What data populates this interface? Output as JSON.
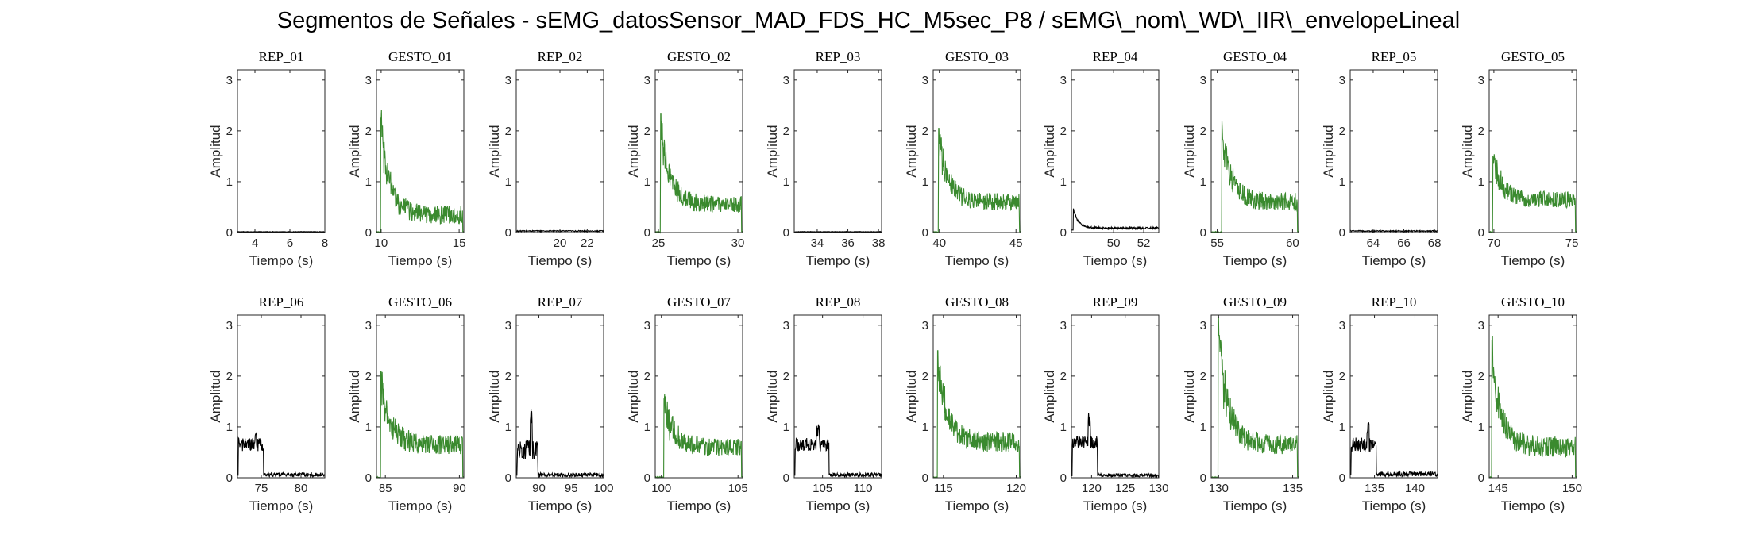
{
  "figure": {
    "title": "Segmentos de Señales - sEMG_datosSensor_MAD_FDS_HC_M5sec_P8 / sEMG\\_nom\\_WD\\_IIR\\_envelopeLineal",
    "xlabel": "Tiempo (s)",
    "ylabel": "Amplitud",
    "colors": {
      "rep": "#000000",
      "gesto": "#3a8a2e",
      "axis": "#262626"
    }
  },
  "chart_data": [
    {
      "type": "line",
      "title": "REP_01",
      "kind": "rep",
      "xlim": [
        3,
        8
      ],
      "ylim": [
        0,
        3.2
      ],
      "xticks": [
        4,
        6,
        8
      ],
      "yticks": [
        0,
        1,
        2,
        3
      ],
      "xlabel": "Tiempo (s)",
      "ylabel": "Amplitud",
      "profile": {
        "onset": 0,
        "peak": 0.02,
        "level": 0.01,
        "noise": 0.01,
        "rest": 0.01
      }
    },
    {
      "type": "line",
      "title": "GESTO_01",
      "kind": "gesto",
      "xlim": [
        9.7,
        15.3
      ],
      "ylim": [
        0,
        3.2
      ],
      "xticks": [
        10,
        15
      ],
      "yticks": [
        0,
        1,
        2,
        3
      ],
      "xlabel": "Tiempo (s)",
      "ylabel": "Amplitud",
      "profile": {
        "onset": 0.05,
        "peak": 2.25,
        "level": 0.35,
        "noise": 0.18,
        "rest": 0.02
      }
    },
    {
      "type": "line",
      "title": "REP_02",
      "kind": "rep",
      "xlim": [
        16.8,
        23.2
      ],
      "ylim": [
        0,
        3.2
      ],
      "xticks": [
        20,
        22
      ],
      "yticks": [
        0,
        1,
        2,
        3
      ],
      "xlabel": "Tiempo (s)",
      "ylabel": "Amplitud",
      "profile": {
        "onset": 0,
        "peak": 0.04,
        "level": 0.02,
        "noise": 0.02,
        "rest": 0.02
      }
    },
    {
      "type": "line",
      "title": "GESTO_02",
      "kind": "gesto",
      "xlim": [
        24.8,
        30.3
      ],
      "ylim": [
        0,
        3.2
      ],
      "xticks": [
        25,
        30
      ],
      "yticks": [
        0,
        1,
        2,
        3
      ],
      "xlabel": "Tiempo (s)",
      "ylabel": "Amplitud",
      "profile": {
        "onset": 0.06,
        "peak": 2.33,
        "level": 0.55,
        "noise": 0.17,
        "rest": 0.02
      }
    },
    {
      "type": "line",
      "title": "REP_03",
      "kind": "rep",
      "xlim": [
        32.5,
        38.2
      ],
      "ylim": [
        0,
        3.2
      ],
      "xticks": [
        34,
        36,
        38
      ],
      "yticks": [
        0,
        1,
        2,
        3
      ],
      "xlabel": "Tiempo (s)",
      "ylabel": "Amplitud",
      "profile": {
        "onset": 0,
        "peak": 0.02,
        "level": 0.01,
        "noise": 0.01,
        "rest": 0.01
      }
    },
    {
      "type": "line",
      "title": "GESTO_03",
      "kind": "gesto",
      "xlim": [
        39.6,
        45.3
      ],
      "ylim": [
        0,
        3.2
      ],
      "xticks": [
        40,
        45
      ],
      "yticks": [
        0,
        1,
        2,
        3
      ],
      "xlabel": "Tiempo (s)",
      "ylabel": "Amplitud",
      "profile": {
        "onset": 0.06,
        "peak": 2.05,
        "level": 0.6,
        "noise": 0.17,
        "rest": 0.02
      }
    },
    {
      "type": "line",
      "title": "REP_04",
      "kind": "rep",
      "xlim": [
        47.2,
        53
      ],
      "ylim": [
        0,
        3.2
      ],
      "xticks": [
        50,
        52
      ],
      "yticks": [
        0,
        1,
        2,
        3
      ],
      "xlabel": "Tiempo (s)",
      "ylabel": "Amplitud",
      "profile": {
        "onset": 0.02,
        "peak": 0.47,
        "level": 0.08,
        "noise": 0.04,
        "rest": 0.05
      }
    },
    {
      "type": "line",
      "title": "GESTO_04",
      "kind": "gesto",
      "xlim": [
        54.6,
        60.4
      ],
      "ylim": [
        0,
        3.2
      ],
      "xticks": [
        55,
        60
      ],
      "yticks": [
        0,
        1,
        2,
        3
      ],
      "xlabel": "Tiempo (s)",
      "ylabel": "Amplitud",
      "profile": {
        "onset": 0.12,
        "peak": 2.2,
        "level": 0.6,
        "noise": 0.18,
        "rest": 0.02
      }
    },
    {
      "type": "line",
      "title": "REP_05",
      "kind": "rep",
      "xlim": [
        62.5,
        68.2
      ],
      "ylim": [
        0,
        3.2
      ],
      "xticks": [
        64,
        66,
        68
      ],
      "yticks": [
        0,
        1,
        2,
        3
      ],
      "xlabel": "Tiempo (s)",
      "ylabel": "Amplitud",
      "profile": {
        "onset": 0,
        "peak": 0.05,
        "level": 0.02,
        "noise": 0.02,
        "rest": 0.02
      }
    },
    {
      "type": "line",
      "title": "GESTO_05",
      "kind": "gesto",
      "xlim": [
        69.7,
        75.3
      ],
      "ylim": [
        0,
        3.2
      ],
      "xticks": [
        70,
        75
      ],
      "yticks": [
        0,
        1,
        2,
        3
      ],
      "xlabel": "Tiempo (s)",
      "ylabel": "Amplitud",
      "profile": {
        "onset": 0.04,
        "peak": 1.5,
        "level": 0.65,
        "noise": 0.16,
        "rest": 0.02
      }
    },
    {
      "type": "line",
      "title": "REP_06",
      "kind": "rep",
      "xlim": [
        72,
        83
      ],
      "ylim": [
        0,
        3.2
      ],
      "xticks": [
        75,
        80
      ],
      "yticks": [
        0,
        1,
        2,
        3
      ],
      "xlabel": "Tiempo (s)",
      "ylabel": "Amplitud",
      "profile": {
        "onset": 0.01,
        "peak": 0.9,
        "level": 0.65,
        "noise": 0.13,
        "rest": 0.05,
        "cut": 0.3
      }
    },
    {
      "type": "line",
      "title": "GESTO_06",
      "kind": "gesto",
      "xlim": [
        84.4,
        90.3
      ],
      "ylim": [
        0,
        3.2
      ],
      "xticks": [
        85,
        90
      ],
      "yticks": [
        0,
        1,
        2,
        3
      ],
      "xlabel": "Tiempo (s)",
      "ylabel": "Amplitud",
      "profile": {
        "onset": 0.05,
        "peak": 2.1,
        "level": 0.65,
        "noise": 0.2,
        "rest": 0.02
      }
    },
    {
      "type": "line",
      "title": "REP_07",
      "kind": "rep",
      "xlim": [
        86.5,
        100
      ],
      "ylim": [
        0,
        3.2
      ],
      "xticks": [
        90,
        95,
        100
      ],
      "yticks": [
        0,
        1,
        2,
        3
      ],
      "xlabel": "Tiempo (s)",
      "ylabel": "Amplitud",
      "profile": {
        "onset": 0.01,
        "peak": 1.35,
        "level": 0.55,
        "noise": 0.2,
        "rest": 0.05,
        "cut": 0.25
      }
    },
    {
      "type": "line",
      "title": "GESTO_07",
      "kind": "gesto",
      "xlim": [
        99.6,
        105.3
      ],
      "ylim": [
        0,
        3.2
      ],
      "xticks": [
        100,
        105
      ],
      "yticks": [
        0,
        1,
        2,
        3
      ],
      "xlabel": "Tiempo (s)",
      "ylabel": "Amplitud",
      "profile": {
        "onset": 0.1,
        "peak": 1.55,
        "level": 0.6,
        "noise": 0.18,
        "rest": 0.02
      }
    },
    {
      "type": "line",
      "title": "REP_08",
      "kind": "rep",
      "xlim": [
        101.5,
        112.3
      ],
      "ylim": [
        0,
        3.2
      ],
      "xticks": [
        105,
        110
      ],
      "yticks": [
        0,
        1,
        2,
        3
      ],
      "xlabel": "Tiempo (s)",
      "ylabel": "Amplitud",
      "profile": {
        "onset": 0.01,
        "peak": 1.05,
        "level": 0.65,
        "noise": 0.13,
        "rest": 0.05,
        "cut": 0.4
      }
    },
    {
      "type": "line",
      "title": "GESTO_08",
      "kind": "gesto",
      "xlim": [
        114.3,
        120.3
      ],
      "ylim": [
        0,
        3.2
      ],
      "xticks": [
        115,
        120
      ],
      "yticks": [
        0,
        1,
        2,
        3
      ],
      "xlabel": "Tiempo (s)",
      "ylabel": "Amplitud",
      "profile": {
        "onset": 0.05,
        "peak": 2.5,
        "level": 0.7,
        "noise": 0.2,
        "rest": 0.02
      }
    },
    {
      "type": "line",
      "title": "REP_09",
      "kind": "rep",
      "xlim": [
        117,
        130
      ],
      "ylim": [
        0,
        3.2
      ],
      "xticks": [
        120,
        125,
        130
      ],
      "yticks": [
        0,
        1,
        2,
        3
      ],
      "xlabel": "Tiempo (s)",
      "ylabel": "Amplitud",
      "profile": {
        "onset": 0.01,
        "peak": 1.3,
        "level": 0.7,
        "noise": 0.13,
        "rest": 0.04,
        "cut": 0.3
      }
    },
    {
      "type": "line",
      "title": "GESTO_09",
      "kind": "gesto",
      "xlim": [
        129.5,
        135.4
      ],
      "ylim": [
        0,
        3.2
      ],
      "xticks": [
        130,
        135
      ],
      "yticks": [
        0,
        1,
        2,
        3
      ],
      "xlabel": "Tiempo (s)",
      "ylabel": "Amplitud",
      "profile": {
        "onset": 0.08,
        "peak": 3.15,
        "level": 0.65,
        "noise": 0.2,
        "rest": 0.02
      }
    },
    {
      "type": "line",
      "title": "REP_10",
      "kind": "rep",
      "xlim": [
        132,
        142.8
      ],
      "ylim": [
        0,
        3.2
      ],
      "xticks": [
        135,
        140
      ],
      "yticks": [
        0,
        1,
        2,
        3
      ],
      "xlabel": "Tiempo (s)",
      "ylabel": "Amplitud",
      "profile": {
        "onset": 0.01,
        "peak": 1.1,
        "level": 0.65,
        "noise": 0.14,
        "rest": 0.06,
        "cut": 0.3
      }
    },
    {
      "type": "line",
      "title": "GESTO_10",
      "kind": "gesto",
      "xlim": [
        144.4,
        150.3
      ],
      "ylim": [
        0,
        3.2
      ],
      "xticks": [
        145,
        150
      ],
      "yticks": [
        0,
        1,
        2,
        3
      ],
      "xlabel": "Tiempo (s)",
      "ylabel": "Amplitud",
      "profile": {
        "onset": 0.03,
        "peak": 2.7,
        "level": 0.6,
        "noise": 0.22,
        "rest": 0.02
      }
    }
  ]
}
